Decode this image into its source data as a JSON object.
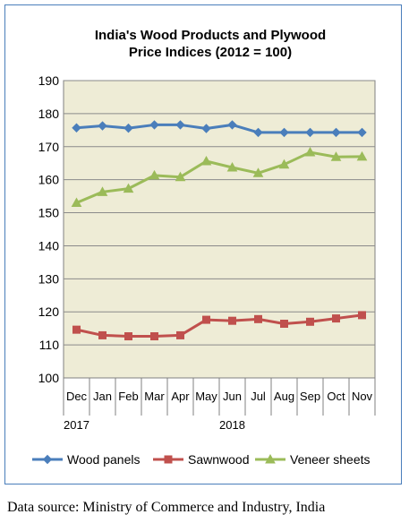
{
  "chart_data": {
    "type": "line",
    "title": [
      "India's Wood Products and Plywood",
      "Price Indices (2012 = 100)"
    ],
    "categories": [
      "Dec",
      "Jan",
      "Feb",
      "Mar",
      "Apr",
      "May",
      "Jun",
      "Jul",
      "Aug",
      "Sep",
      "Oct",
      "Nov"
    ],
    "year_labels": [
      {
        "label": "2017",
        "from": 0,
        "to": 0
      },
      {
        "label": "2018",
        "from": 1,
        "to": 11
      }
    ],
    "ylim": [
      100,
      190
    ],
    "yticks": [
      100,
      110,
      120,
      130,
      140,
      150,
      160,
      170,
      180,
      190
    ],
    "grid": true,
    "plot_bg": "#eeecd6",
    "legend_position": "bottom",
    "series": [
      {
        "name": "Wood panels",
        "color": "#4a7ebb",
        "marker": "diamond",
        "values": [
          175.7,
          176.3,
          175.6,
          176.6,
          176.6,
          175.5,
          176.6,
          174.3,
          174.3,
          174.3,
          174.3,
          174.3
        ]
      },
      {
        "name": "Sawnwood",
        "color": "#c0504d",
        "marker": "square",
        "values": [
          114.6,
          112.9,
          112.6,
          112.6,
          112.9,
          117.6,
          117.3,
          117.8,
          116.4,
          117.0,
          118.0,
          119.0
        ]
      },
      {
        "name": "Veneer sheets",
        "color": "#9bbb59",
        "marker": "triangle",
        "values": [
          153.0,
          156.3,
          157.3,
          161.3,
          160.8,
          165.6,
          163.7,
          162.0,
          164.6,
          168.3,
          166.9,
          167.0
        ]
      }
    ]
  },
  "source_text": "Data source: Ministry of Commerce and Industry, India"
}
